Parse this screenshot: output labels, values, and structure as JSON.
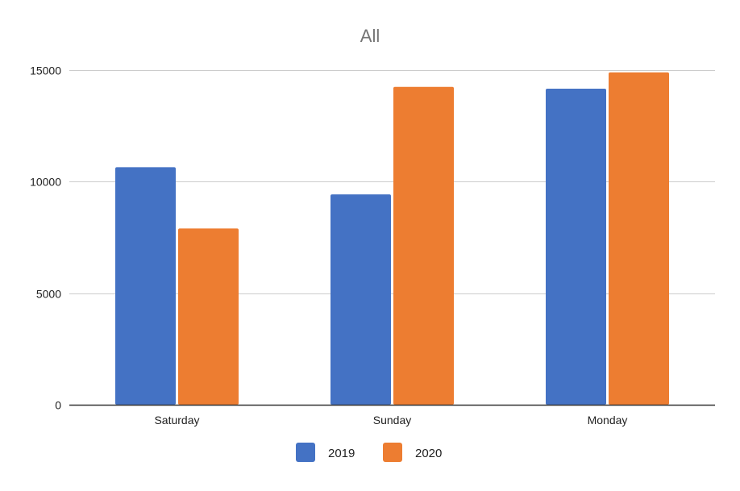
{
  "chart_data": {
    "type": "bar",
    "title": "All",
    "xlabel": "",
    "ylabel": "",
    "categories": [
      "Saturday",
      "Sunday",
      "Monday"
    ],
    "series": [
      {
        "name": "2019",
        "color": "#4472C4",
        "values": [
          10650,
          9430,
          14170
        ]
      },
      {
        "name": "2020",
        "color": "#ED7D31",
        "values": [
          7900,
          14250,
          14900
        ]
      }
    ],
    "ylim": [
      0,
      15000
    ],
    "yticks": [
      0,
      5000,
      10000,
      15000
    ],
    "grid": true,
    "legend_position": "bottom"
  }
}
